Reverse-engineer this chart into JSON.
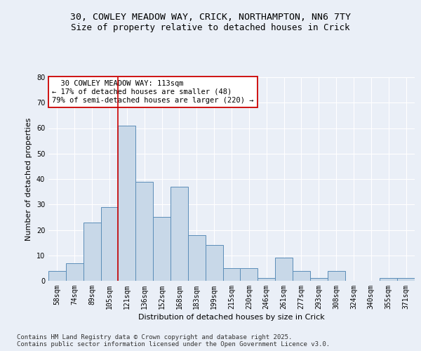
{
  "title_line1": "30, COWLEY MEADOW WAY, CRICK, NORTHAMPTON, NN6 7TY",
  "title_line2": "Size of property relative to detached houses in Crick",
  "xlabel": "Distribution of detached houses by size in Crick",
  "ylabel": "Number of detached properties",
  "categories": [
    "58sqm",
    "74sqm",
    "89sqm",
    "105sqm",
    "121sqm",
    "136sqm",
    "152sqm",
    "168sqm",
    "183sqm",
    "199sqm",
    "215sqm",
    "230sqm",
    "246sqm",
    "261sqm",
    "277sqm",
    "293sqm",
    "308sqm",
    "324sqm",
    "340sqm",
    "355sqm",
    "371sqm"
  ],
  "values": [
    4,
    7,
    23,
    29,
    61,
    39,
    25,
    37,
    18,
    14,
    5,
    5,
    1,
    9,
    4,
    1,
    4,
    0,
    0,
    1,
    1
  ],
  "bar_color": "#c8d8e8",
  "bar_edge_color": "#5b8db8",
  "vline_x": 3.5,
  "vline_color": "#cc0000",
  "annotation_text": "  30 COWLEY MEADOW WAY: 113sqm\n← 17% of detached houses are smaller (48)\n79% of semi-detached houses are larger (220) →",
  "annotation_box_color": "#ffffff",
  "annotation_box_edge": "#cc0000",
  "ylim": [
    0,
    80
  ],
  "yticks": [
    0,
    10,
    20,
    30,
    40,
    50,
    60,
    70,
    80
  ],
  "background_color": "#eaeff7",
  "plot_bg_color": "#eaeff7",
  "footer_text": "Contains HM Land Registry data © Crown copyright and database right 2025.\nContains public sector information licensed under the Open Government Licence v3.0.",
  "grid_color": "#ffffff",
  "title_fontsize": 9.5,
  "subtitle_fontsize": 9,
  "axis_label_fontsize": 8,
  "tick_fontsize": 7,
  "annotation_fontsize": 7.5,
  "footer_fontsize": 6.5
}
